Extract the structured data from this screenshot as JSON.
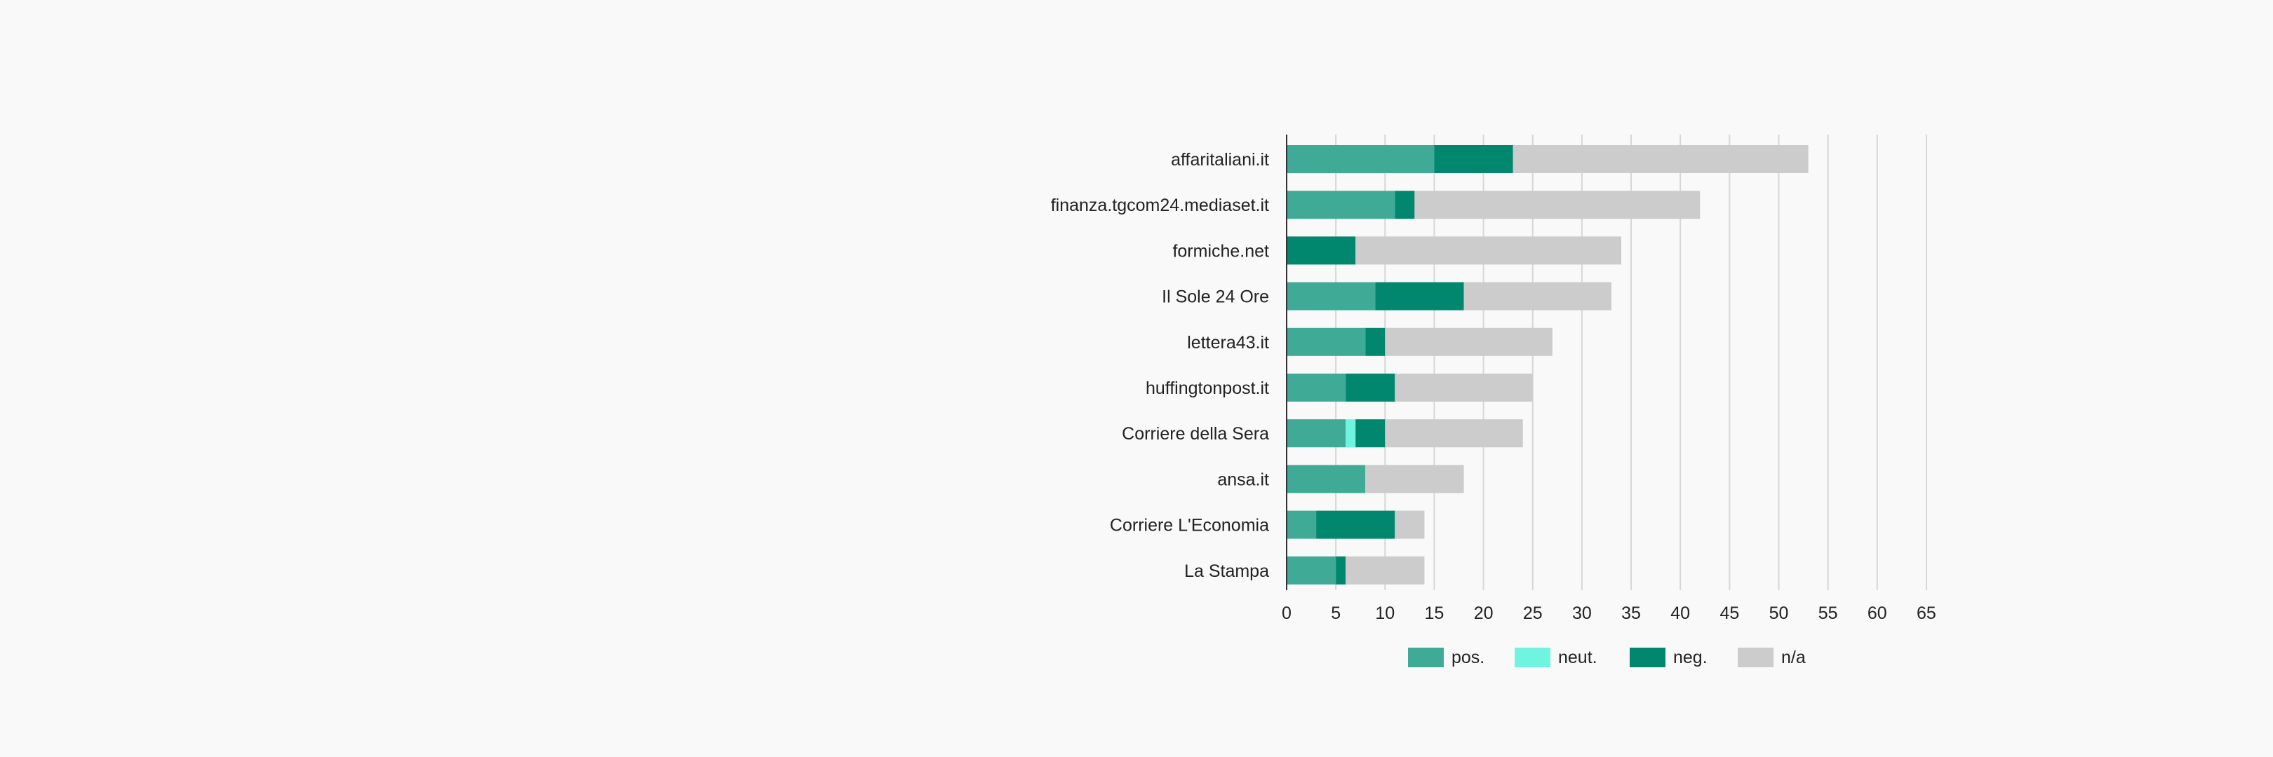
{
  "chart_data": {
    "type": "bar",
    "orientation": "horizontal",
    "stacked": true,
    "categories": [
      "affaritaliani.it",
      "finanza.tgcom24.mediaset.it",
      "formiche.net",
      "Il Sole 24 Ore",
      "lettera43.it",
      "huffingtonpost.it",
      "Corriere della Sera",
      "ansa.it",
      "Corriere L'Economia",
      "La Stampa"
    ],
    "series": [
      {
        "name": "pos.",
        "color": "#3fab97",
        "values": [
          15,
          11,
          0,
          9,
          8,
          6,
          6,
          8,
          3,
          5
        ]
      },
      {
        "name": "neut.",
        "color": "#6ff5df",
        "values": [
          0,
          0,
          0,
          0,
          0,
          0,
          1,
          0,
          0,
          0
        ]
      },
      {
        "name": "neg.",
        "color": "#00876e",
        "values": [
          8,
          2,
          7,
          9,
          2,
          5,
          3,
          0,
          8,
          1
        ]
      },
      {
        "name": "n/a",
        "color": "#cccccc",
        "values": [
          30,
          29,
          27,
          15,
          17,
          14,
          14,
          10,
          3,
          8
        ]
      }
    ],
    "xlim": [
      0,
      65
    ],
    "xticks": [
      0,
      5,
      10,
      15,
      20,
      25,
      30,
      35,
      40,
      45,
      50,
      55,
      60,
      65
    ],
    "grid": true,
    "legend_position": "bottom",
    "title": "",
    "xlabel": "",
    "ylabel": ""
  }
}
